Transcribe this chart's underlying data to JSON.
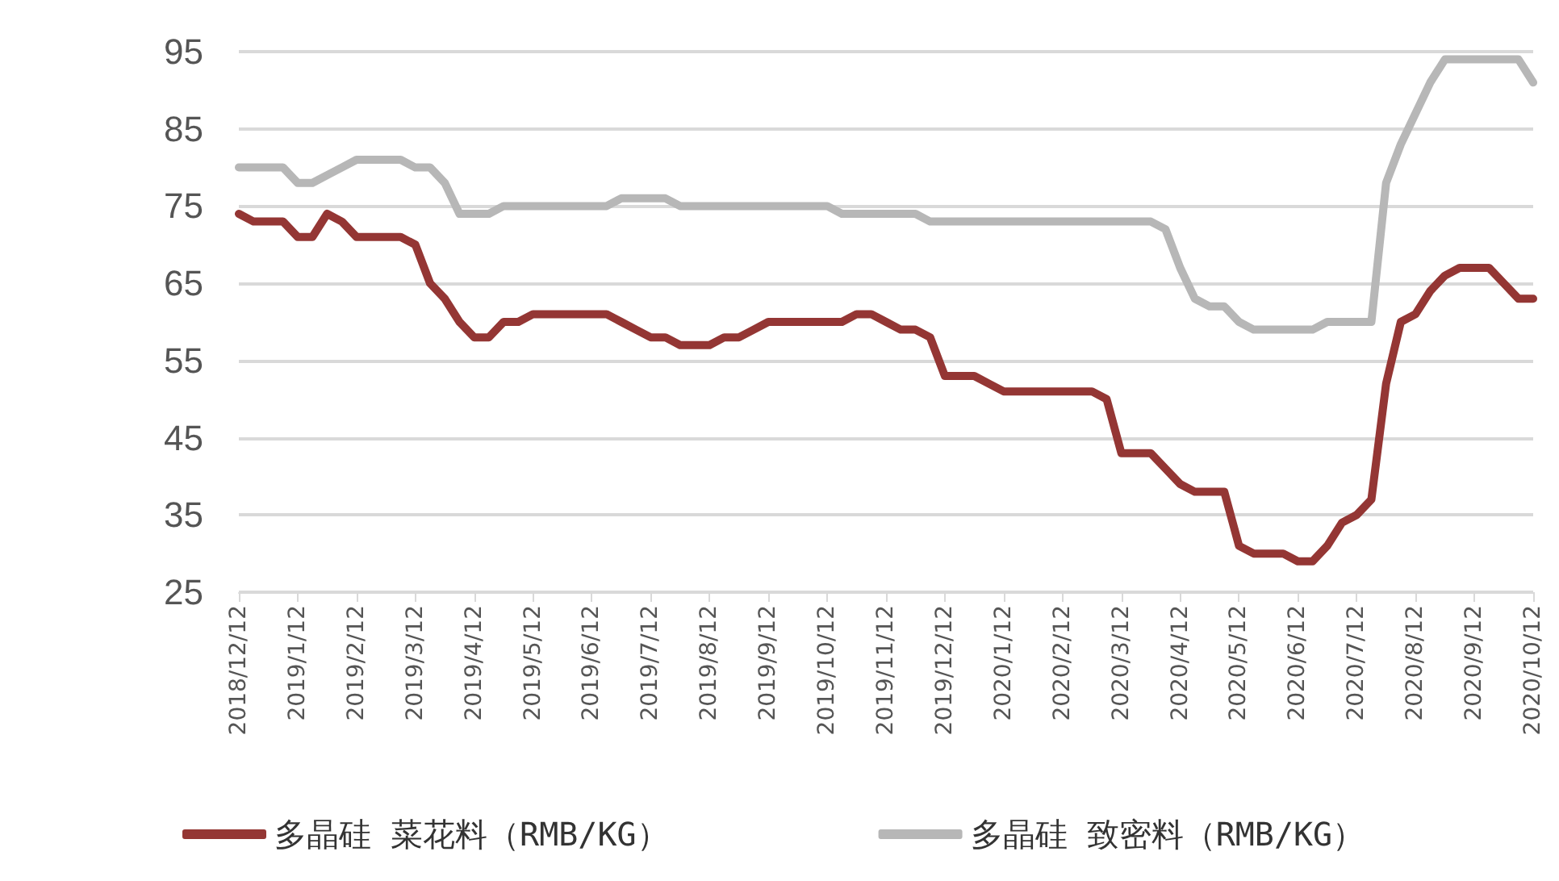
{
  "chart_data": {
    "type": "line",
    "categories": [
      "2018/12/12",
      null,
      null,
      null,
      "2019/1/12",
      null,
      null,
      null,
      "2019/2/12",
      null,
      null,
      null,
      "2019/3/12",
      null,
      null,
      null,
      "2019/4/12",
      null,
      null,
      null,
      "2019/5/12",
      null,
      null,
      null,
      "2019/6/12",
      null,
      null,
      null,
      "2019/7/12",
      null,
      null,
      null,
      "2019/8/12",
      null,
      null,
      null,
      "2019/9/12",
      null,
      null,
      null,
      "2019/10/12",
      null,
      null,
      null,
      "2019/11/12",
      null,
      null,
      null,
      "2019/12/12",
      null,
      null,
      null,
      "2020/1/12",
      null,
      null,
      null,
      "2020/2/12",
      null,
      null,
      null,
      "2020/3/12",
      null,
      null,
      null,
      "2020/4/12",
      null,
      null,
      null,
      "2020/5/12",
      null,
      null,
      null,
      "2020/6/12",
      null,
      null,
      null,
      "2020/7/12",
      null,
      null,
      null,
      "2020/8/12",
      null,
      null,
      null,
      "2020/9/12",
      null,
      null,
      null,
      "2020/10/12"
    ],
    "series": [
      {
        "name": "多晶硅 菜花料（RMB/KG）",
        "color": "#943634",
        "values": [
          74,
          73,
          73,
          73,
          71,
          71,
          74,
          73,
          71,
          71,
          71,
          71,
          70,
          65,
          63,
          60,
          58,
          58,
          60,
          60,
          61,
          61,
          61,
          61,
          61,
          61,
          60,
          59,
          58,
          58,
          57,
          57,
          57,
          58,
          58,
          59,
          60,
          60,
          60,
          60,
          60,
          60,
          61,
          61,
          60,
          59,
          59,
          58,
          53,
          53,
          53,
          52,
          51,
          51,
          51,
          51,
          51,
          51,
          51,
          50,
          43,
          43,
          43,
          41,
          39,
          38,
          38,
          38,
          31,
          30,
          30,
          30,
          29,
          29,
          31,
          34,
          35,
          37,
          52,
          60,
          61,
          64,
          66,
          67,
          67,
          67,
          65,
          63,
          63
        ]
      },
      {
        "name": "多晶硅 致密料（RMB/KG）",
        "color": "#b7b7b7",
        "values": [
          80,
          80,
          80,
          80,
          78,
          78,
          79,
          80,
          81,
          81,
          81,
          81,
          80,
          80,
          78,
          74,
          74,
          74,
          75,
          75,
          75,
          75,
          75,
          75,
          75,
          75,
          76,
          76,
          76,
          76,
          75,
          75,
          75,
          75,
          75,
          75,
          75,
          75,
          75,
          75,
          75,
          74,
          74,
          74,
          74,
          74,
          74,
          73,
          73,
          73,
          73,
          73,
          73,
          73,
          73,
          73,
          73,
          73,
          73,
          73,
          73,
          73,
          73,
          72,
          67,
          63,
          62,
          62,
          60,
          59,
          59,
          59,
          59,
          59,
          60,
          60,
          60,
          60,
          78,
          83,
          87,
          91,
          94,
          94,
          94,
          94,
          94,
          94,
          91
        ]
      }
    ],
    "ylim": [
      25,
      95
    ],
    "yticks": [
      25,
      35,
      45,
      55,
      65,
      75,
      85,
      95
    ],
    "grid": "y",
    "legend": "bottom",
    "marker": "none",
    "line_style": "solid"
  }
}
